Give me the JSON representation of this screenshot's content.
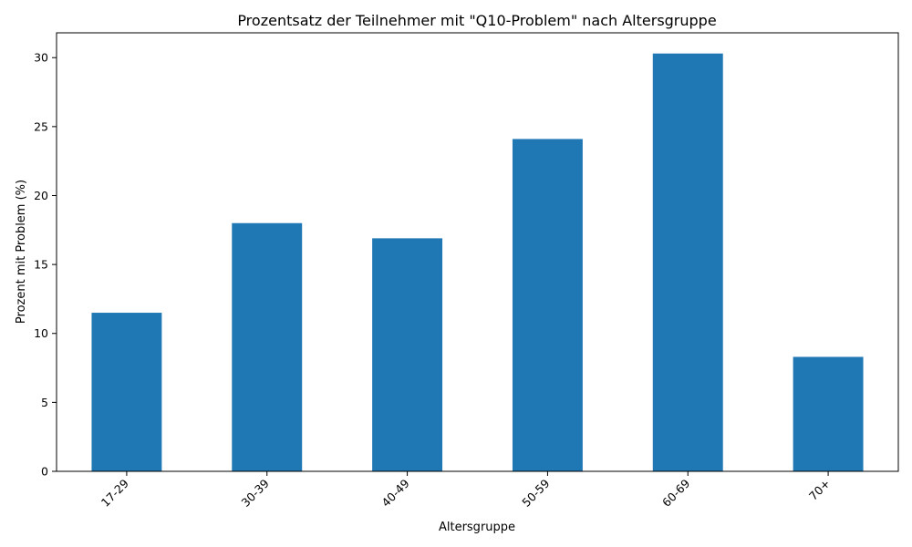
{
  "chart_data": {
    "type": "bar",
    "title": "Prozentsatz der Teilnehmer mit \"Q10-Problem\" nach Altersgruppe",
    "xlabel": "Altersgruppe",
    "ylabel": "Prozent mit Problem (%)",
    "categories": [
      "17-29",
      "30-39",
      "40-49",
      "50-59",
      "60-69",
      "70+"
    ],
    "values": [
      11.5,
      18.0,
      16.9,
      24.1,
      30.3,
      8.3
    ],
    "ylim": [
      0,
      31.8
    ],
    "yticks": [
      0,
      5,
      10,
      15,
      20,
      25,
      30
    ],
    "ytick_labels": [
      "0",
      "5",
      "10",
      "15",
      "20",
      "25",
      "30"
    ],
    "bar_color": "#1f77b4",
    "grid": false,
    "legend": "none"
  }
}
